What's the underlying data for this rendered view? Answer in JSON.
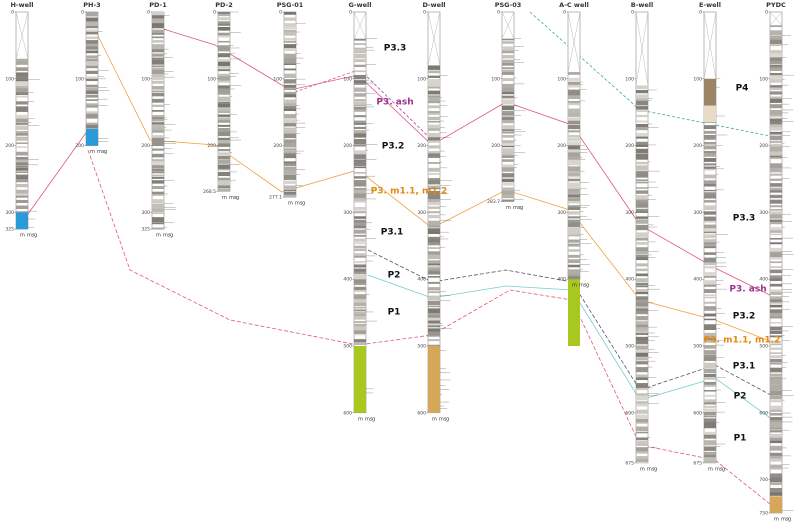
{
  "wells": [
    {
      "name": "H-well",
      "depths": [
        0,
        100,
        200,
        300,
        325
      ]
    },
    {
      "name": "PH-3",
      "depths": [
        0,
        100,
        200
      ]
    },
    {
      "name": "PD-1",
      "depths": [
        0,
        100,
        200,
        300,
        325
      ]
    },
    {
      "name": "PD-2",
      "depths": [
        0,
        100,
        200,
        268.5
      ]
    },
    {
      "name": "PSG-01",
      "depths": [
        0,
        100,
        200,
        277.1
      ]
    },
    {
      "name": "G-well",
      "depths": [
        0,
        100,
        200,
        300,
        400,
        500,
        600
      ]
    },
    {
      "name": "D-well",
      "depths": [
        0,
        100,
        200,
        300,
        400,
        500,
        600
      ]
    },
    {
      "name": "PSG-03",
      "depths": [
        0,
        100,
        200,
        283.7
      ]
    },
    {
      "name": "A-C well",
      "depths": [
        0,
        100,
        200,
        300,
        400
      ]
    },
    {
      "name": "B-well",
      "depths": [
        0,
        100,
        200,
        300,
        400,
        500,
        600,
        675
      ]
    },
    {
      "name": "E-well",
      "depths": [
        0,
        100,
        200,
        300,
        400,
        500,
        600,
        675
      ]
    },
    {
      "name": "PYDC",
      "depths": [
        0,
        100,
        200,
        300,
        400,
        500,
        600,
        700,
        750
      ]
    }
  ],
  "scale_labels": [
    "m",
    "ms",
    "g"
  ],
  "units_left": [
    "P3.3",
    "P3. ash",
    "P3.2",
    "P3. m1.1, m1.2",
    "P3.1",
    "P2",
    "P1"
  ],
  "units_right": [
    "P4",
    "P3.3",
    "P3. ash",
    "P3.2",
    "P3. m1.1, m1.2",
    "P3.1",
    "P2",
    "P1"
  ]
}
